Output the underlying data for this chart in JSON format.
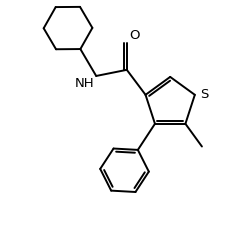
{
  "background_color": "#ffffff",
  "line_color": "#000000",
  "line_width": 1.4,
  "figsize": [
    2.34,
    2.38
  ],
  "dpi": 100,
  "xlim": [
    0,
    10
  ],
  "ylim": [
    0,
    10
  ]
}
